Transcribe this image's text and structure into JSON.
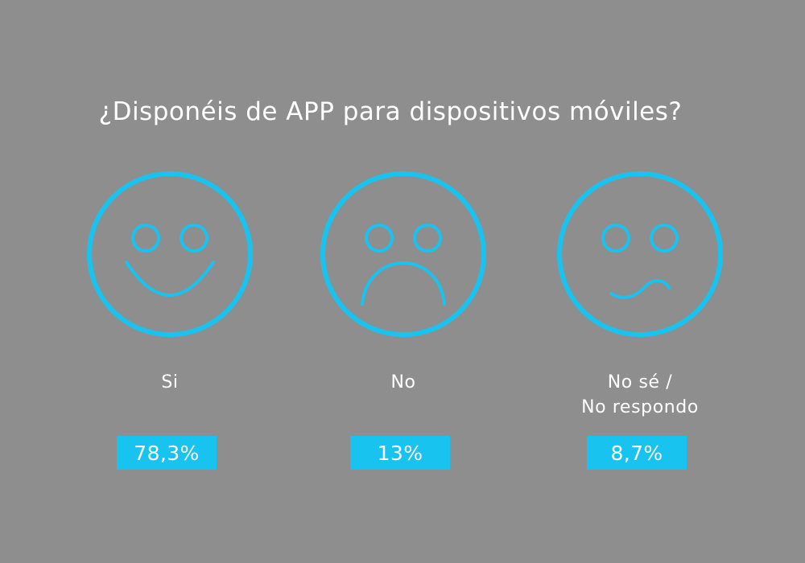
{
  "chart_data": {
    "type": "pie",
    "title": "¿Disponéis de APP para dispositivos móviles?",
    "categories": [
      "Si",
      "No",
      "No sé / No respondo"
    ],
    "values": [
      78.3,
      13,
      8.7
    ],
    "display_values": [
      "78,3%",
      "13%",
      "8,7%"
    ],
    "category_lines": [
      [
        "Si"
      ],
      [
        "No"
      ],
      [
        "No sé /",
        "No respondo"
      ]
    ],
    "faces": [
      "happy-face-icon",
      "sad-face-icon",
      "unsure-face-icon"
    ],
    "colors": {
      "background": "#8e8e8e",
      "accent": "#18c3f0",
      "text": "#ffffff"
    }
  }
}
